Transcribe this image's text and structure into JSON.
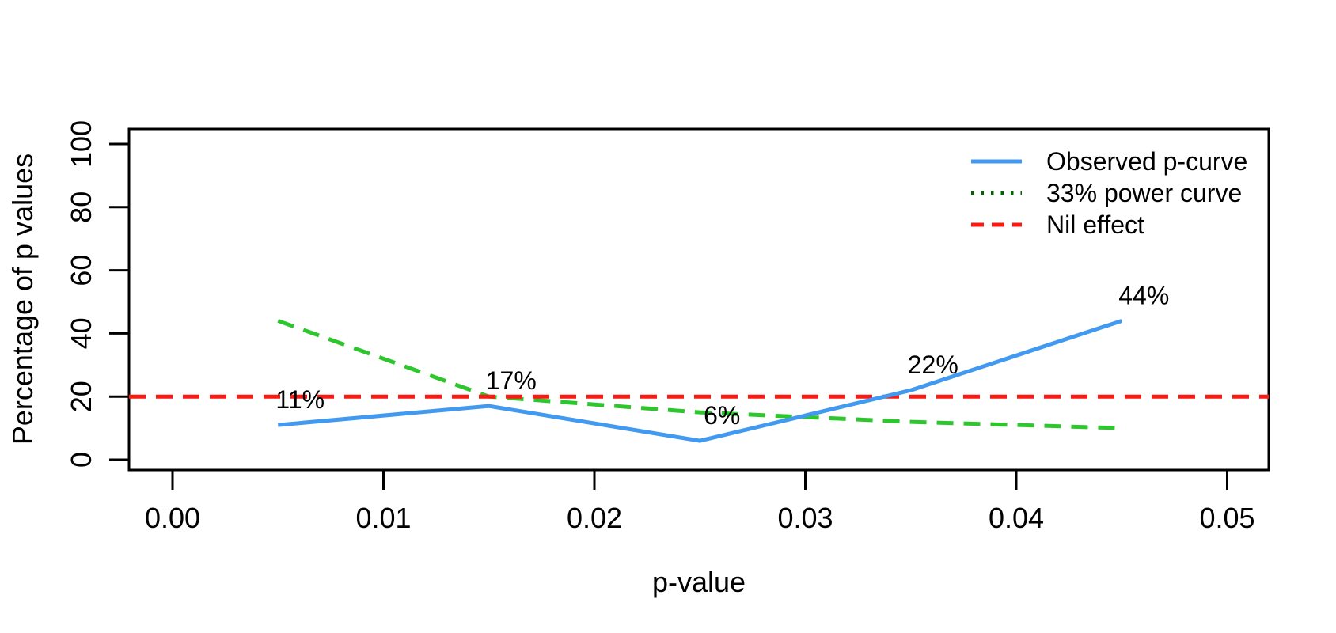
{
  "chart_data": {
    "type": "line",
    "title": "",
    "xlabel": "p-value",
    "ylabel": "Percentage of p values",
    "x": [
      0.005,
      0.015,
      0.025,
      0.035,
      0.045
    ],
    "x_ticks": {
      "values": [
        0,
        0.01,
        0.02,
        0.03,
        0.04,
        0.05
      ],
      "labels": [
        "0.00",
        "0.01",
        "0.02",
        "0.03",
        "0.04",
        "0.05"
      ]
    },
    "y_ticks": {
      "values": [
        0,
        20,
        40,
        60,
        80,
        100
      ],
      "labels": [
        "0",
        "20",
        "40",
        "60",
        "80",
        "100"
      ]
    },
    "xlim": [
      -0.002,
      0.052
    ],
    "ylim": [
      0,
      108
    ],
    "grid": false,
    "legend_position": "top-right",
    "series": [
      {
        "name": "Observed p-curve",
        "color": "#4299F0",
        "legend_color": "#4299F0",
        "style": "solid",
        "legend_style": "solid",
        "values": [
          11,
          17,
          6,
          22,
          44
        ],
        "point_labels": [
          "11%",
          "17%",
          "6%",
          "22%",
          "44%"
        ],
        "full_width": false
      },
      {
        "name": "33% power curve",
        "color": "#2DC62D",
        "legend_color": "#016401",
        "style": "dashed",
        "legend_style": "dotted",
        "values": [
          44,
          20,
          15,
          12,
          10
        ],
        "point_labels": null,
        "full_width": false
      },
      {
        "name": "Nil effect",
        "color": "#FA1A14",
        "legend_color": "#FA1A14",
        "style": "dashed",
        "legend_style": "dashed",
        "values": [
          20,
          20,
          20,
          20,
          20
        ],
        "point_labels": null,
        "full_width": true
      }
    ]
  }
}
